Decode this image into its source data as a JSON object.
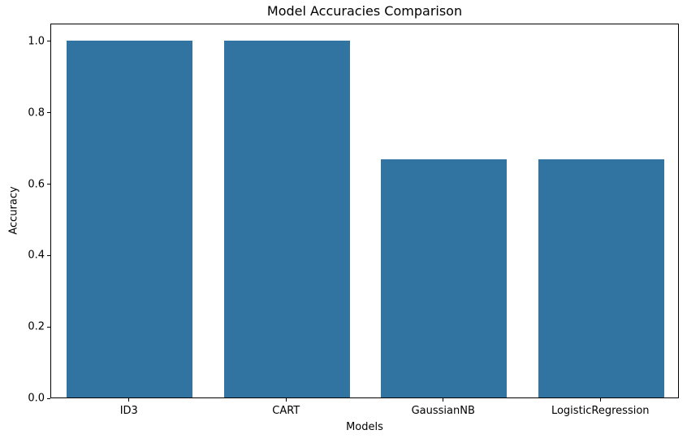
{
  "chart_data": {
    "type": "bar",
    "title": "Model Accuracies Comparison",
    "xlabel": "Models",
    "ylabel": "Accuracy",
    "categories": [
      "ID3",
      "CART",
      "GaussianNB",
      "LogisticRegression"
    ],
    "values": [
      1.0,
      1.0,
      0.667,
      0.667
    ],
    "ylim": [
      0,
      1.05
    ],
    "yticks": [
      "0.0",
      "0.2",
      "0.4",
      "0.6",
      "0.8",
      "1.0"
    ],
    "bar_color": "#3274a1",
    "bar_width_fraction": 0.8,
    "grid": false,
    "legend_position": "none"
  }
}
